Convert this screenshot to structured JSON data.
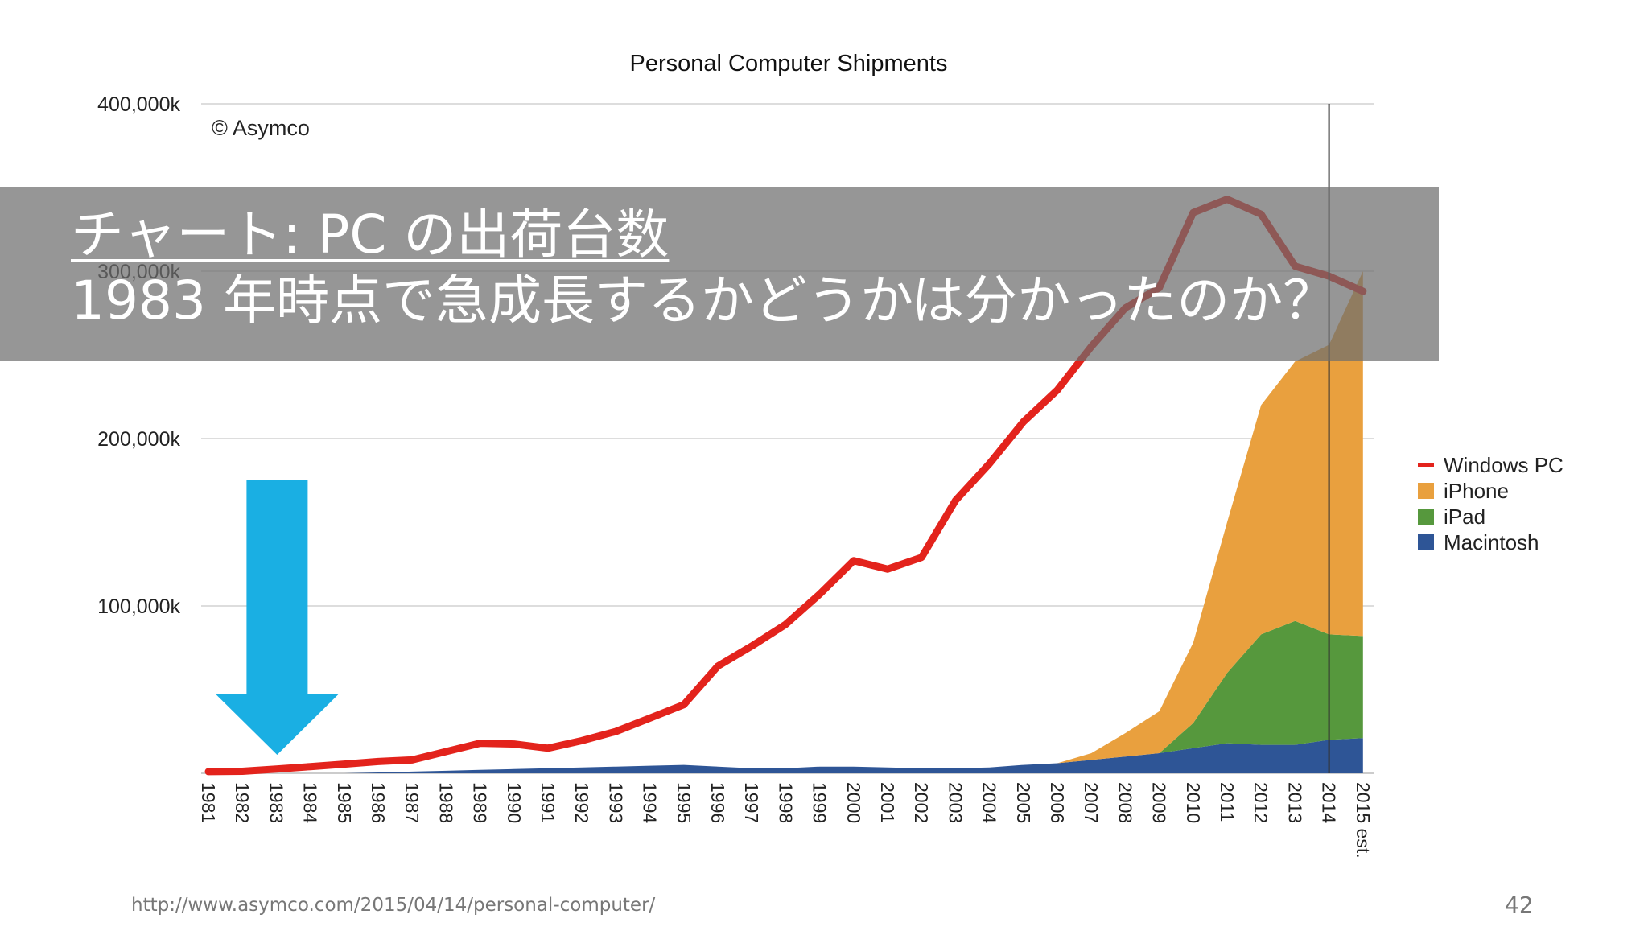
{
  "chart_data": {
    "type": "area",
    "title": "Personal Computer Shipments",
    "annotation": "© Asymco",
    "ylim": [
      0,
      400000
    ],
    "y_ticks": [
      "400,000k",
      "300,000k",
      "200,000k",
      "100,000k"
    ],
    "y_tick_values": [
      400000,
      300000,
      200000,
      100000
    ],
    "x_labels": [
      "1981",
      "1982",
      "1983",
      "1984",
      "1985",
      "1986",
      "1987",
      "1988",
      "1989",
      "1990",
      "1991",
      "1992",
      "1993",
      "1994",
      "1995",
      "1996",
      "1997",
      "1998",
      "1999",
      "2000",
      "2001",
      "2002",
      "2003",
      "2004",
      "2005",
      "2006",
      "2007",
      "2008",
      "2009",
      "2010",
      "2011",
      "2012",
      "2013",
      "2014",
      "2015 est."
    ],
    "stacked_series": [
      {
        "name": "Macintosh",
        "color": "#2e5596",
        "values": [
          0,
          0,
          0,
          0,
          0,
          500,
          1000,
          1500,
          2000,
          2500,
          3000,
          3500,
          4000,
          4500,
          5000,
          4000,
          3000,
          3000,
          4000,
          4000,
          3500,
          3000,
          3000,
          3500,
          5000,
          6000,
          8000,
          10000,
          12000,
          15000,
          18000,
          17000,
          17000,
          20000,
          21000
        ]
      },
      {
        "name": "iPad",
        "color": "#56983d",
        "values": [
          0,
          0,
          0,
          0,
          0,
          0,
          0,
          0,
          0,
          0,
          0,
          0,
          0,
          0,
          0,
          0,
          0,
          0,
          0,
          0,
          0,
          0,
          0,
          0,
          0,
          0,
          0,
          0,
          0,
          15000,
          42000,
          66000,
          74000,
          63000,
          61000
        ]
      },
      {
        "name": "iPhone",
        "color": "#e9a03e",
        "values": [
          0,
          0,
          0,
          0,
          0,
          0,
          0,
          0,
          0,
          0,
          0,
          0,
          0,
          0,
          0,
          0,
          0,
          0,
          0,
          0,
          0,
          0,
          0,
          0,
          0,
          0,
          4000,
          14000,
          25000,
          48000,
          90000,
          137000,
          155000,
          173000,
          218000
        ]
      }
    ],
    "line_series": {
      "name": "Windows PC",
      "color": "#e3231c",
      "dark_color": "#8b0000",
      "values": [
        1000,
        1200,
        2500,
        4000,
        5500,
        7000,
        8000,
        13000,
        18000,
        17500,
        15000,
        19500,
        25000,
        33000,
        41000,
        64000,
        76000,
        89000,
        107000,
        127000,
        122000,
        129000,
        163000,
        185000,
        210000,
        229000,
        255000,
        278000,
        290000,
        335000,
        343000,
        334000,
        303000,
        297000,
        288000
      ]
    },
    "marker": {
      "x": "2014"
    },
    "legend": {
      "position": "right",
      "items": [
        {
          "label": "Windows PC",
          "color": "#e3231c",
          "kind": "line"
        },
        {
          "label": "iPhone",
          "color": "#e9a03e",
          "kind": "area"
        },
        {
          "label": "iPad",
          "color": "#56983d",
          "kind": "area"
        },
        {
          "label": "Macintosh",
          "color": "#2e5596",
          "kind": "area"
        }
      ]
    },
    "arrow": {
      "x": "1983",
      "color": "#1aafe3"
    }
  },
  "overlay": {
    "line1": "チャート: PC の出荷台数",
    "line2": "1983 年時点で急成長するかどうかは分かったのか？"
  },
  "footer": {
    "url": "http://www.asymco.com/2015/04/14/personal-computer/",
    "page_number": "42"
  }
}
